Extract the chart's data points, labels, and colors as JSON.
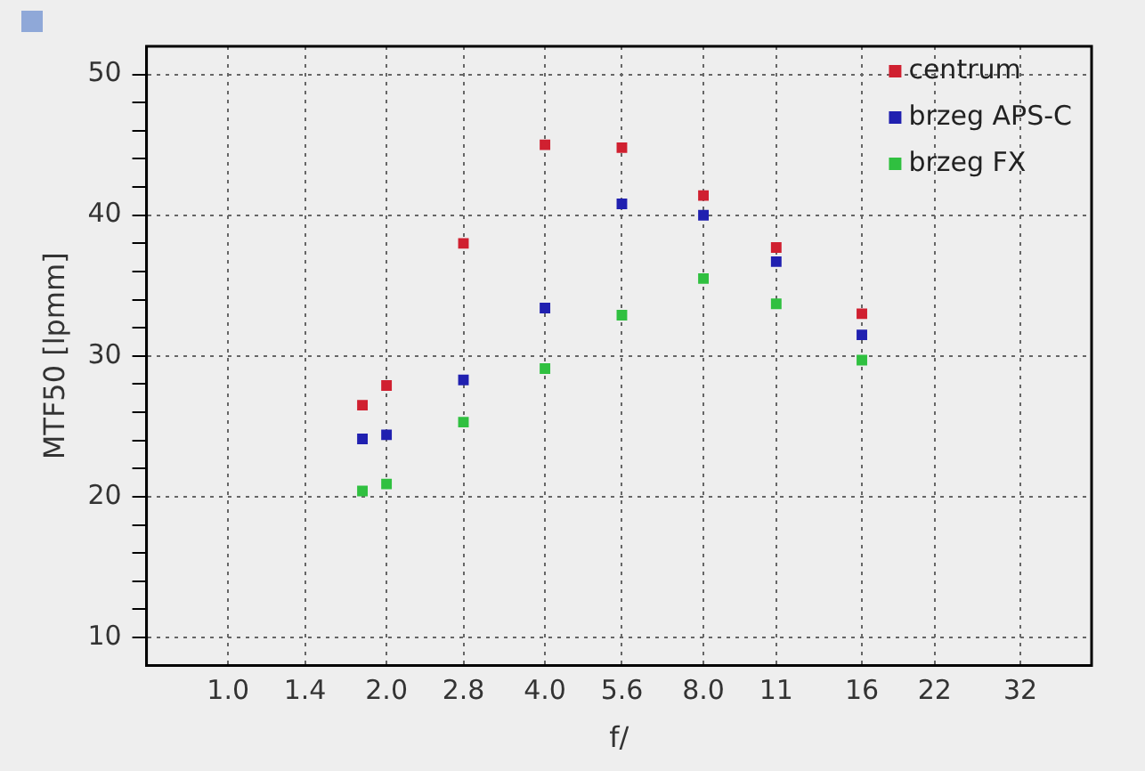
{
  "chart_data": {
    "type": "scatter",
    "xlabel": "f/",
    "ylabel": "MTF50 [lpmm]",
    "log": "x",
    "xlim": [
      0.72,
      43.7
    ],
    "xticks": [
      {
        "value": 1.0,
        "label": "1.0"
      },
      {
        "value": 1.4,
        "label": "1.4"
      },
      {
        "value": 2.0,
        "label": "2.0"
      },
      {
        "value": 2.8,
        "label": "2.8"
      },
      {
        "value": 4.0,
        "label": "4.0"
      },
      {
        "value": 5.6,
        "label": "5.6"
      },
      {
        "value": 8.0,
        "label": "8.0"
      },
      11,
      16,
      22,
      32
    ],
    "ylim": [
      8,
      52
    ],
    "yticks": [
      10,
      {
        "value": 12,
        "label": null
      },
      {
        "value": 14,
        "label": null
      },
      {
        "value": 16,
        "label": null
      },
      {
        "value": 18,
        "label": null
      },
      20,
      {
        "value": 22,
        "label": null
      },
      {
        "value": 24,
        "label": null
      },
      {
        "value": 26,
        "label": null
      },
      {
        "value": 28,
        "label": null
      },
      30,
      {
        "value": 32,
        "label": null
      },
      {
        "value": 34,
        "label": null
      },
      {
        "value": 36,
        "label": null
      },
      {
        "value": 38,
        "label": null
      },
      40,
      {
        "value": 42,
        "label": null
      },
      {
        "value": 44,
        "label": null
      },
      {
        "value": 46,
        "label": null
      },
      {
        "value": 48,
        "label": null
      },
      50
    ],
    "x": [
      1.8,
      2.0,
      2.8,
      4.0,
      5.6,
      8.0,
      11,
      16
    ],
    "series": [
      {
        "name": "centrum",
        "color": "#d02030",
        "values": [
          26.5,
          27.9,
          38.0,
          45.0,
          44.8,
          41.4,
          37.7,
          33.0
        ]
      },
      {
        "name": "brzeg APS-C",
        "color": "#2020b0",
        "values": [
          24.1,
          24.4,
          28.3,
          33.4,
          40.8,
          40.0,
          36.7,
          31.5
        ]
      },
      {
        "name": "brzeg FX",
        "color": "#30c040",
        "values": [
          20.4,
          20.9,
          25.3,
          29.1,
          32.9,
          35.5,
          33.7,
          29.7
        ]
      }
    ],
    "grid": true,
    "legend": "top right",
    "marker": "square"
  }
}
